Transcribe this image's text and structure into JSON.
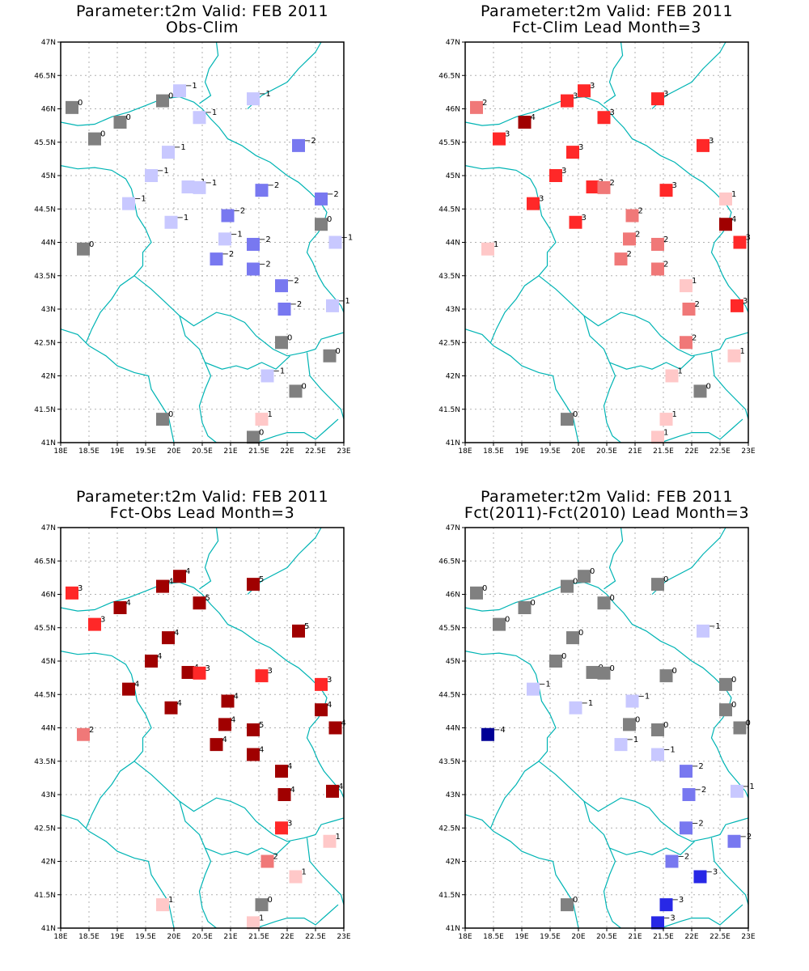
{
  "figure": {
    "colors": {
      "neg1": "#c8c8ff",
      "neg2": "#7878f0",
      "neg3": "#2828e6",
      "neg4": "#000096",
      "zero": "#808080",
      "pos1": "#ffc8c8",
      "pos2": "#f07878",
      "pos3": "#ff2828",
      "pos4": "#a00000",
      "pos5": "#a00000",
      "border": "#00b4b4"
    },
    "axes": {
      "xticks": [
        "18E",
        "18.5E",
        "19E",
        "19.5E",
        "20E",
        "20.5E",
        "21E",
        "21.5E",
        "22E",
        "22.5E",
        "23E"
      ],
      "yticks": [
        "41N",
        "41.5N",
        "42N",
        "42.5N",
        "43N",
        "43.5N",
        "44N",
        "44.5N",
        "45N",
        "45.5N",
        "46N",
        "46.5N",
        "47N"
      ]
    },
    "stations": [
      [
        18.2,
        46.02
      ],
      [
        18.6,
        45.55
      ],
      [
        19.05,
        45.8
      ],
      [
        19.8,
        46.12
      ],
      [
        20.1,
        46.27
      ],
      [
        20.45,
        45.87
      ],
      [
        21.4,
        46.15
      ],
      [
        19.9,
        45.35
      ],
      [
        22.2,
        45.45
      ],
      [
        19.6,
        45.0
      ],
      [
        20.25,
        44.83
      ],
      [
        20.45,
        44.82
      ],
      [
        21.55,
        44.78
      ],
      [
        22.6,
        44.65
      ],
      [
        19.2,
        44.58
      ],
      [
        19.95,
        44.3
      ],
      [
        20.95,
        44.4
      ],
      [
        22.6,
        44.27
      ],
      [
        18.4,
        43.9
      ],
      [
        20.9,
        44.05
      ],
      [
        21.4,
        43.97
      ],
      [
        22.85,
        44.0
      ],
      [
        20.75,
        43.75
      ],
      [
        21.4,
        43.6
      ],
      [
        21.9,
        43.35
      ],
      [
        21.95,
        43.0
      ],
      [
        22.8,
        43.05
      ],
      [
        21.9,
        42.5
      ],
      [
        22.75,
        42.3
      ],
      [
        21.65,
        42.0
      ],
      [
        22.15,
        41.77
      ],
      [
        19.8,
        41.35
      ],
      [
        21.55,
        41.35
      ],
      [
        21.4,
        41.08
      ]
    ],
    "panels": [
      {
        "title_line1": "Parameter:t2m Valid: FEB 2011",
        "title_line2": "Obs-Clim",
        "values": [
          0,
          0,
          0,
          0,
          -1,
          -1,
          -1,
          -1,
          -2,
          -1,
          -1,
          -1,
          -2,
          -2,
          -1,
          -1,
          -2,
          0,
          0,
          -1,
          -2,
          -1,
          -2,
          -2,
          -2,
          -2,
          -1,
          0,
          0,
          -1,
          0,
          0,
          1,
          0
        ]
      },
      {
        "title_line1": "Parameter:t2m Valid: FEB 2011",
        "title_line2": "Fct-Clim Lead Month=3",
        "values": [
          2,
          3,
          4,
          3,
          3,
          3,
          3,
          3,
          3,
          3,
          3,
          2,
          3,
          1,
          3,
          3,
          2,
          4,
          1,
          2,
          2,
          3,
          2,
          2,
          1,
          2,
          3,
          2,
          1,
          1,
          0,
          0,
          1,
          1
        ]
      },
      {
        "title_line1": "Parameter:t2m Valid: FEB 2011",
        "title_line2": "Fct-Obs Lead Month=3",
        "values": [
          3,
          3,
          4,
          4,
          4,
          5,
          5,
          4,
          5,
          4,
          4,
          3,
          3,
          3,
          4,
          4,
          4,
          4,
          2,
          4,
          5,
          4,
          4,
          4,
          4,
          4,
          4,
          3,
          1,
          2,
          1,
          1,
          0,
          1
        ]
      },
      {
        "title_line1": "Parameter:t2m Valid: FEB 2011",
        "title_line2": "Fct(2011)-Fct(2010) Lead Month=3",
        "values": [
          0,
          0,
          0,
          0,
          0,
          0,
          0,
          0,
          -1,
          0,
          0,
          0,
          0,
          0,
          -1,
          -1,
          -1,
          0,
          -4,
          0,
          0,
          0,
          -1,
          -1,
          -2,
          -2,
          -1,
          -2,
          -2,
          -2,
          -3,
          0,
          -3,
          -3
        ]
      }
    ]
  }
}
